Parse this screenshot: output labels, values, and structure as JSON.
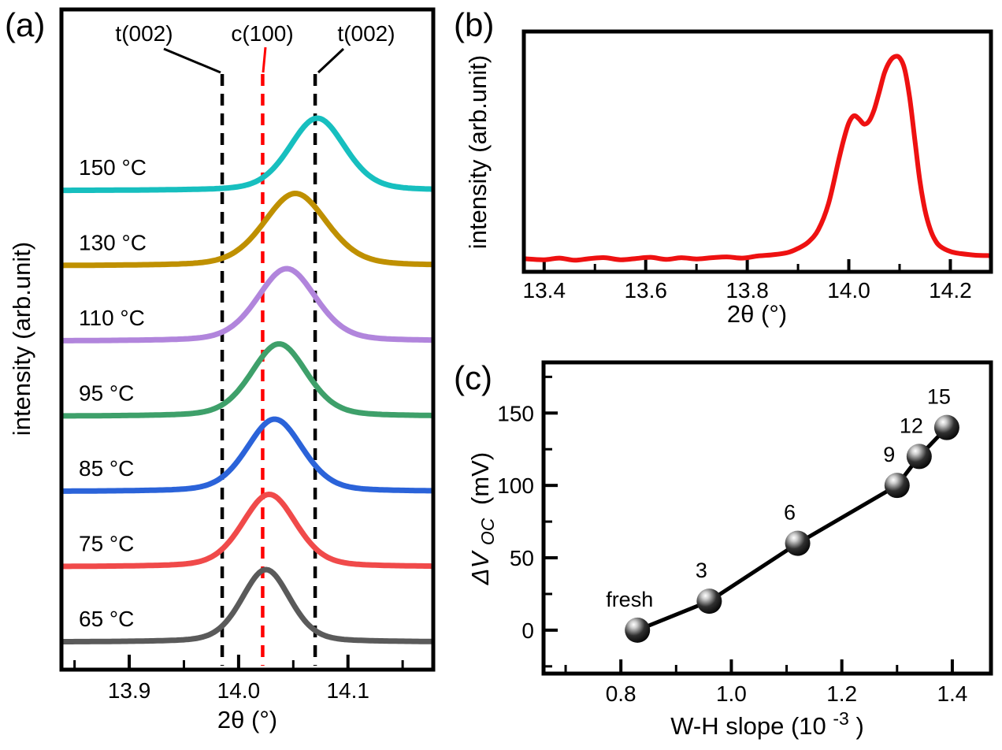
{
  "chart_data": [
    {
      "panel": "(a)",
      "type": "line",
      "xlabel": "2θ (°)",
      "ylabel": "intensity (arb.unit)",
      "xlim": [
        13.838,
        14.178
      ],
      "xticks": [
        "13.9",
        "14.0",
        "14.1"
      ],
      "xticks_minor": [
        13.85,
        13.95,
        14.05,
        14.15
      ],
      "grid": false,
      "reference_lines": [
        {
          "label": "t(002)",
          "x": 13.985,
          "color": "#000000",
          "style": "dashed"
        },
        {
          "label": "c(100)",
          "x": 14.022,
          "color": "#ff0000",
          "style": "dashed"
        },
        {
          "label": "t(002)",
          "x": 14.07,
          "color": "#000000",
          "style": "dashed"
        }
      ],
      "series": [
        {
          "name": "65 °C",
          "color": "#5a5a5a",
          "peak_center": 14.025,
          "peak_fwhm": 0.052,
          "height": 1.0
        },
        {
          "name": "75 °C",
          "color": "#f04a4a",
          "peak_center": 14.028,
          "peak_fwhm": 0.058,
          "height": 1.0
        },
        {
          "name": "85 °C",
          "color": "#2b63d9",
          "peak_center": 14.033,
          "peak_fwhm": 0.06,
          "height": 1.0
        },
        {
          "name": "95 °C",
          "color": "#3ea06a",
          "peak_center": 14.037,
          "peak_fwhm": 0.06,
          "height": 1.0
        },
        {
          "name": "110 °C",
          "color": "#b185dc",
          "peak_center": 14.044,
          "peak_fwhm": 0.063,
          "height": 1.0
        },
        {
          "name": "130 °C",
          "color": "#bf9000",
          "peak_center": 14.052,
          "peak_fwhm": 0.068,
          "height": 1.0
        },
        {
          "name": "150 °C",
          "color": "#17bfbf",
          "peak_center": 14.072,
          "peak_fwhm": 0.06,
          "height": 1.0
        }
      ]
    },
    {
      "panel": "(b)",
      "type": "line",
      "xlabel": "2θ (°)",
      "ylabel": "intensity (arb.unit)",
      "xlim": [
        13.36,
        14.28
      ],
      "xticks": [
        "13.4",
        "13.6",
        "13.8",
        "14.0",
        "14.2"
      ],
      "xticks_minor": [
        13.5,
        13.7,
        13.9,
        14.1
      ],
      "grid": false,
      "series": [
        {
          "name": "XRD pattern",
          "color": "#ee1111",
          "points": [
            [
              13.36,
              0.025
            ],
            [
              13.4,
              0.02
            ],
            [
              13.43,
              0.028
            ],
            [
              13.46,
              0.018
            ],
            [
              13.49,
              0.026
            ],
            [
              13.52,
              0.03
            ],
            [
              13.55,
              0.02
            ],
            [
              13.58,
              0.026
            ],
            [
              13.61,
              0.032
            ],
            [
              13.64,
              0.022
            ],
            [
              13.67,
              0.03
            ],
            [
              13.7,
              0.024
            ],
            [
              13.73,
              0.03
            ],
            [
              13.76,
              0.034
            ],
            [
              13.79,
              0.028
            ],
            [
              13.82,
              0.038
            ],
            [
              13.85,
              0.044
            ],
            [
              13.88,
              0.055
            ],
            [
              13.9,
              0.075
            ],
            [
              13.92,
              0.105
            ],
            [
              13.94,
              0.165
            ],
            [
              13.96,
              0.29
            ],
            [
              13.98,
              0.5
            ],
            [
              13.99,
              0.6
            ],
            [
              14.0,
              0.68
            ],
            [
              14.01,
              0.715
            ],
            [
              14.02,
              0.7
            ],
            [
              14.03,
              0.675
            ],
            [
              14.04,
              0.69
            ],
            [
              14.05,
              0.745
            ],
            [
              14.06,
              0.83
            ],
            [
              14.07,
              0.92
            ],
            [
              14.08,
              0.975
            ],
            [
              14.09,
              1.0
            ],
            [
              14.1,
              0.995
            ],
            [
              14.11,
              0.94
            ],
            [
              14.12,
              0.8
            ],
            [
              14.13,
              0.6
            ],
            [
              14.14,
              0.4
            ],
            [
              14.15,
              0.26
            ],
            [
              14.16,
              0.17
            ],
            [
              14.17,
              0.115
            ],
            [
              14.18,
              0.085
            ],
            [
              14.2,
              0.06
            ],
            [
              14.22,
              0.05
            ],
            [
              14.25,
              0.042
            ],
            [
              14.28,
              0.04
            ]
          ]
        }
      ]
    },
    {
      "panel": "(c)",
      "type": "scatter",
      "xlabel": "W-H slope (10⁻³)",
      "xlabel_parts": {
        "pre": "W-H slope (10",
        "sup": "-3",
        "post": ")"
      },
      "ylabel": "ΔVOC (mV)",
      "ylabel_parts": {
        "main": "ΔV",
        "sub": "OC",
        "unit": "(mV)"
      },
      "xlim": [
        0.66,
        1.47
      ],
      "ylim": [
        -30,
        185
      ],
      "xticks": [
        "0.8",
        "1.0",
        "1.2",
        "1.4"
      ],
      "xticks_minor": [
        0.7,
        0.9,
        1.1,
        1.3
      ],
      "yticks": [
        "0",
        "50",
        "100",
        "150"
      ],
      "yticks_minor": [
        -25,
        25,
        75,
        125,
        175
      ],
      "grid": false,
      "line_color": "#000000",
      "marker_color": "#000000",
      "points": [
        {
          "label": "fresh",
          "x": 0.83,
          "y": 0
        },
        {
          "label": "3",
          "x": 0.96,
          "y": 20
        },
        {
          "label": "6",
          "x": 1.12,
          "y": 60
        },
        {
          "label": "9",
          "x": 1.3,
          "y": 100
        },
        {
          "label": "12",
          "x": 1.34,
          "y": 120
        },
        {
          "label": "15",
          "x": 1.39,
          "y": 140
        }
      ]
    }
  ]
}
